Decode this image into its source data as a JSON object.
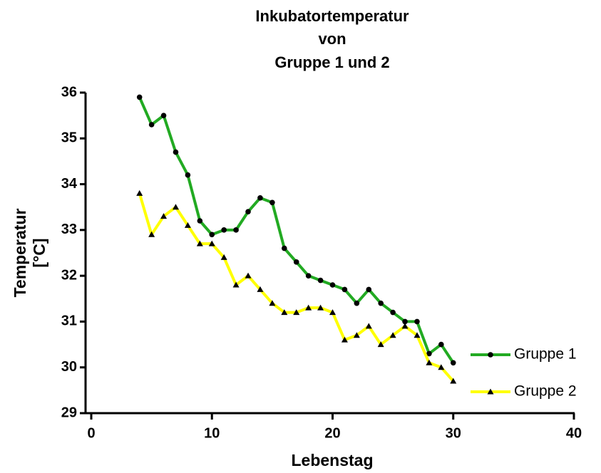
{
  "chart_data": {
    "type": "line",
    "title": [
      "Inkubatortemperatur",
      "von",
      "Gruppe 1 und 2"
    ],
    "xlabel": "Lebenstag",
    "ylabel": [
      "Temperatur",
      "[°C]"
    ],
    "x": [
      4,
      5,
      6,
      7,
      8,
      9,
      10,
      11,
      12,
      13,
      14,
      15,
      16,
      17,
      18,
      19,
      20,
      21,
      22,
      23,
      24,
      25,
      26,
      27,
      28,
      29,
      30
    ],
    "series": [
      {
        "name": "Gruppe 1",
        "color": "#22aa22",
        "marker": "circle",
        "values": [
          35.9,
          35.3,
          35.5,
          34.7,
          34.2,
          33.2,
          32.9,
          33.0,
          33.0,
          33.4,
          33.7,
          33.6,
          32.6,
          32.3,
          32.0,
          31.9,
          31.8,
          31.7,
          31.4,
          31.7,
          31.4,
          31.2,
          31.0,
          31.0,
          30.3,
          30.5,
          30.1
        ]
      },
      {
        "name": "Gruppe 2",
        "color": "#ffff00",
        "marker": "triangle",
        "values": [
          33.8,
          32.9,
          33.3,
          33.5,
          33.1,
          32.7,
          32.7,
          32.4,
          31.8,
          32.0,
          31.7,
          31.4,
          31.2,
          31.2,
          31.3,
          31.3,
          31.2,
          30.6,
          30.7,
          30.9,
          30.5,
          30.7,
          30.9,
          30.7,
          30.1,
          30.0,
          29.7
        ]
      }
    ],
    "xlim": [
      0,
      40
    ],
    "xticks": [
      0,
      10,
      20,
      30,
      40
    ],
    "ylim": [
      29,
      36
    ],
    "yticks": [
      29,
      30,
      31,
      32,
      33,
      34,
      35,
      36
    ],
    "grid": false,
    "legend": "right"
  }
}
